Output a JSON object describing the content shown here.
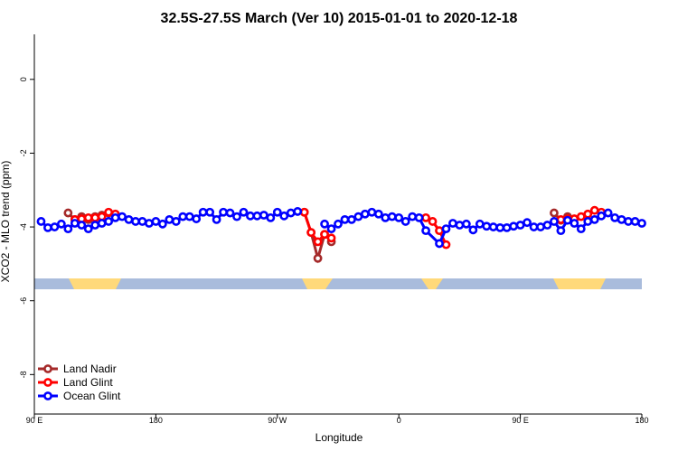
{
  "chart_data": {
    "type": "line",
    "title": "32.5S-27.5S March (Ver 10)   2015-01-01 to 2020-12-18",
    "x_label": "Longitude",
    "y_label": "XCO2 - MLO trend (ppm)",
    "xlim": [
      90,
      540
    ],
    "xticks": [
      {
        "value": 90,
        "label": "90 E"
      },
      180,
      {
        "value": 270,
        "label": "90 W"
      },
      {
        "value": 360,
        "label": "0"
      },
      {
        "value": 450,
        "label": "90 E"
      },
      {
        "value": 540,
        "label": "180"
      }
    ],
    "ylim": [
      -9.07,
      1.22
    ],
    "yticks": [
      0,
      -2,
      -4,
      -6,
      -8
    ],
    "legend": "bottom-left",
    "series": [
      {
        "name": "Land Nadir",
        "color": "#a52a2a",
        "x": [
          115,
          120,
          125,
          130,
          135,
          140,
          145,
          150,
          290,
          295,
          300,
          305,
          310,
          315,
          475,
          480,
          485
        ],
        "values": [
          -3.62,
          -3.8,
          -3.72,
          -3.8,
          -3.72,
          -3.68,
          -3.62,
          null,
          -3.6,
          -4.15,
          -4.85,
          -4.2,
          -4.4,
          null,
          -3.62,
          -3.82,
          -3.72
        ]
      },
      {
        "name": "Land Glint",
        "color": "#ff0000",
        "x": [
          120,
          125,
          130,
          135,
          140,
          145,
          150,
          155,
          290,
          295,
          300,
          305,
          310,
          315,
          380,
          385,
          390,
          395,
          400,
          480,
          485,
          490,
          495,
          500,
          505,
          510
        ],
        "values": [
          -3.8,
          -3.78,
          -3.75,
          -3.75,
          -3.72,
          -3.6,
          -3.65,
          null,
          -3.6,
          -4.15,
          -4.4,
          -4.2,
          -4.3,
          null,
          -3.75,
          -3.85,
          -4.1,
          -4.48,
          null,
          -3.8,
          -3.78,
          -3.78,
          -3.72,
          -3.65,
          -3.55,
          -3.6
        ]
      },
      {
        "name": "Ocean Glint",
        "color": "#0000ff",
        "x": [
          95,
          100,
          105,
          110,
          115,
          120,
          125,
          130,
          135,
          140,
          145,
          150,
          155,
          160,
          165,
          170,
          175,
          180,
          185,
          190,
          195,
          200,
          205,
          210,
          215,
          220,
          225,
          230,
          235,
          240,
          245,
          250,
          255,
          260,
          265,
          270,
          275,
          280,
          285,
          295,
          305,
          310,
          315,
          320,
          325,
          330,
          335,
          340,
          345,
          350,
          355,
          360,
          365,
          370,
          375,
          380,
          390,
          395,
          400,
          405,
          410,
          415,
          420,
          425,
          430,
          435,
          440,
          445,
          450,
          455,
          460,
          465,
          470,
          475,
          480,
          485,
          490,
          495,
          500,
          505,
          510,
          515,
          520,
          525,
          530,
          535,
          540
        ],
        "values": [
          -3.85,
          -4.02,
          -4.0,
          -3.92,
          -4.05,
          -3.9,
          -3.95,
          -4.05,
          -3.95,
          -3.9,
          -3.85,
          -3.75,
          -3.72,
          -3.8,
          -3.85,
          -3.85,
          -3.9,
          -3.85,
          -3.92,
          -3.8,
          -3.85,
          -3.72,
          -3.72,
          -3.78,
          -3.6,
          -3.6,
          -3.8,
          -3.6,
          -3.62,
          -3.72,
          -3.6,
          -3.7,
          -3.7,
          -3.68,
          -3.75,
          -3.6,
          -3.7,
          -3.62,
          -3.58,
          null,
          -3.92,
          -4.05,
          -3.92,
          -3.8,
          -3.8,
          -3.72,
          -3.65,
          -3.6,
          -3.65,
          -3.75,
          -3.72,
          -3.75,
          -3.85,
          -3.72,
          -3.75,
          -4.1,
          -4.45,
          -4.05,
          -3.9,
          -3.95,
          -3.92,
          -4.08,
          -3.92,
          -3.98,
          -4.0,
          -4.02,
          -4.02,
          -3.98,
          -3.95,
          -3.88,
          -4.0,
          -4.0,
          -3.95,
          -3.85,
          -4.1,
          -3.82,
          -3.9,
          -4.05,
          -3.85,
          -3.8,
          -3.7,
          -3.62,
          -3.75,
          -3.8,
          -3.85,
          -3.85,
          -3.9
        ]
      }
    ]
  }
}
